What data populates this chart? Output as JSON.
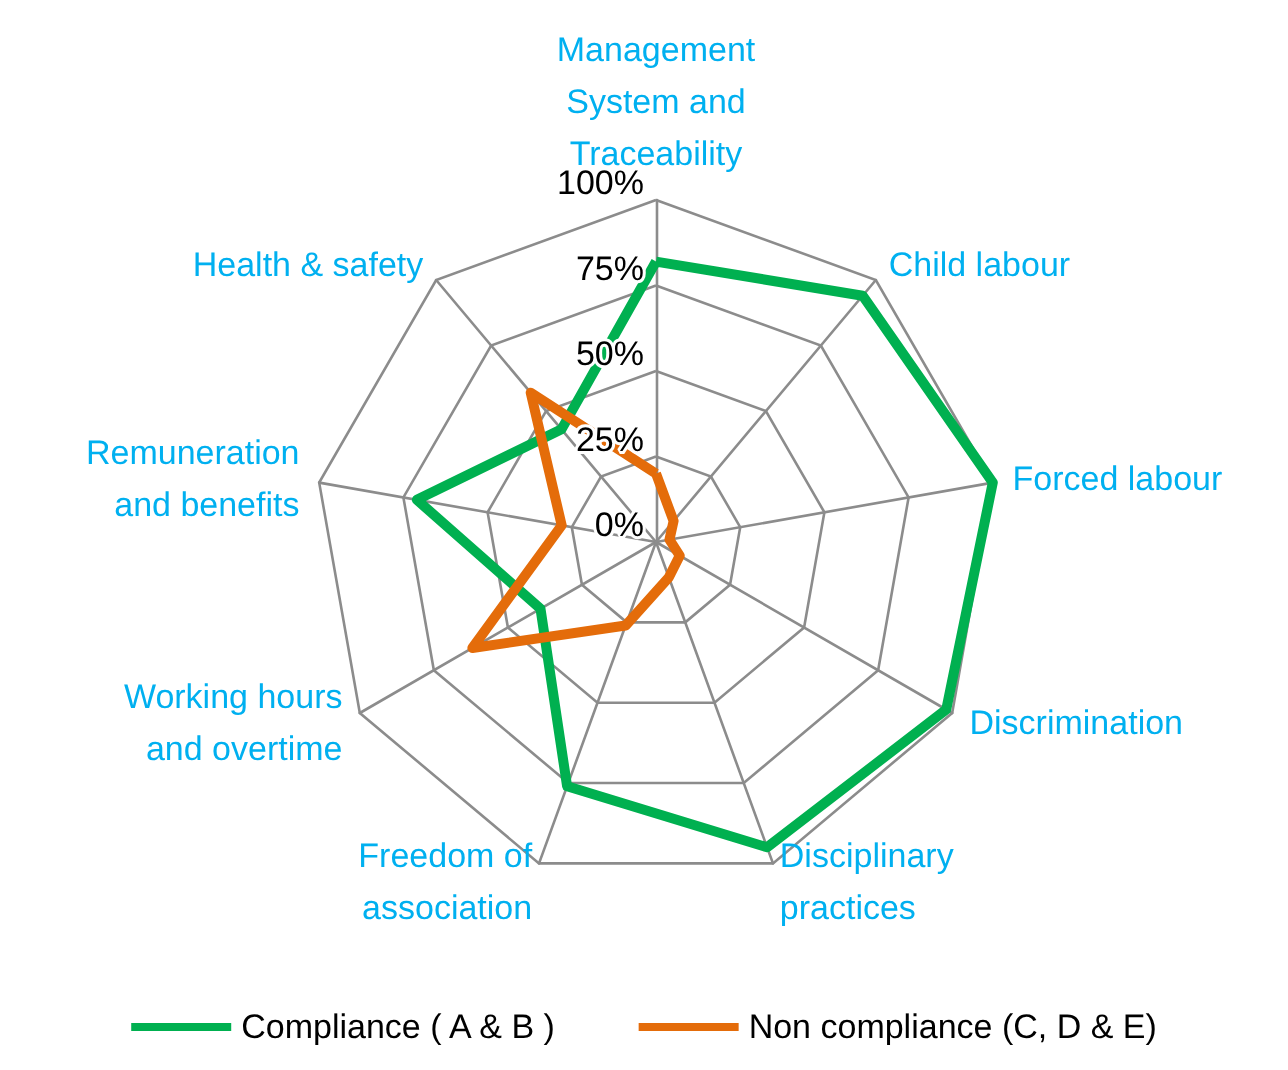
{
  "chart_data": {
    "type": "radar",
    "categories": [
      "Management\nSystem and\nTraceability",
      "Child labour",
      "Forced labour",
      "Discrimination",
      "Disciplinary\npractices",
      "Freedom of\nassociation",
      "Working hours\nand overtime",
      "Remuneration\nand benefits",
      "Health & safety"
    ],
    "series": [
      {
        "name": "Compliance ( A & B )",
        "color": "#00b050",
        "values": [
          82,
          94,
          100,
          98,
          95,
          76,
          39,
          71,
          43
        ]
      },
      {
        "name": "Non compliance (C, D & E)",
        "color": "#e46c0a",
        "values": [
          20,
          8,
          4,
          8,
          11,
          26,
          62,
          28,
          57
        ]
      }
    ],
    "ylim": [
      0,
      100
    ],
    "yticks": [
      {
        "value": 0,
        "label": "0%"
      },
      {
        "value": 25,
        "label": "25%"
      },
      {
        "value": 50,
        "label": "50%"
      },
      {
        "value": 75,
        "label": "75%"
      },
      {
        "value": 100,
        "label": "100%"
      }
    ],
    "legend": "bottom",
    "marker": "none",
    "line_style": "solid"
  }
}
